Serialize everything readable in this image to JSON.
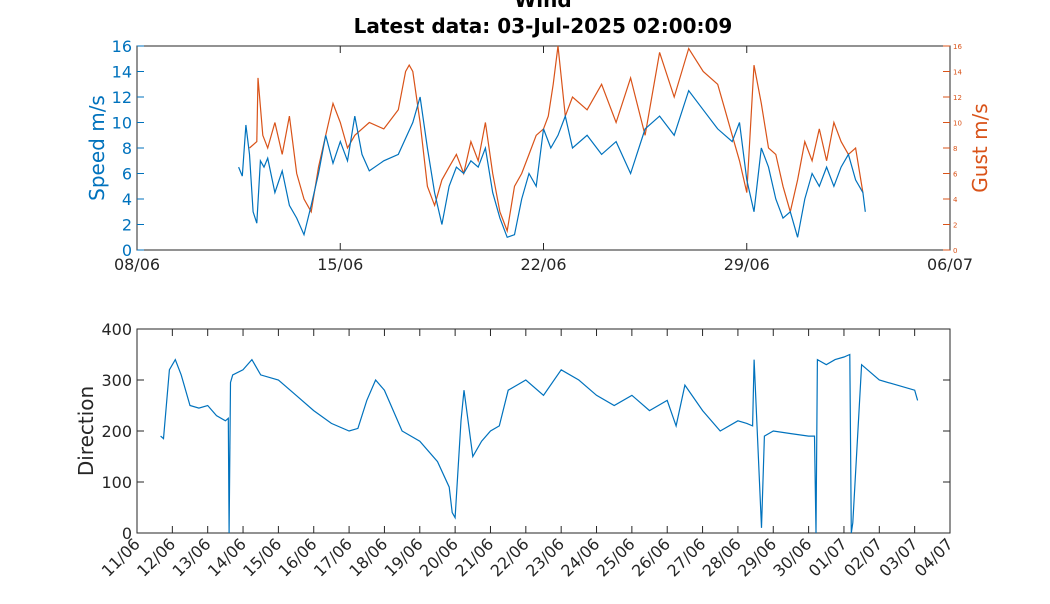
{
  "chart_data": [
    {
      "type": "line",
      "title": "Wind",
      "subtitle": "Latest data: 03-Jul-2025 02:00:09",
      "x_ticks": [
        "08/06",
        "15/06",
        "22/06",
        "29/06",
        "06/07"
      ],
      "xlim": [
        "2025-06-08",
        "2025-07-06"
      ],
      "ylabel": "Speed m/s",
      "y2label": "Gust m/s",
      "ylim": [
        0,
        16
      ],
      "y2lim": [
        0,
        16
      ],
      "y_ticks": [
        0,
        2,
        4,
        6,
        8,
        10,
        12,
        14,
        16
      ],
      "y2_ticks": [
        0,
        2,
        4,
        6,
        8,
        10,
        12,
        14,
        16
      ],
      "colors": {
        "speed": "#0072bd",
        "gust": "#d95319"
      },
      "series": [
        {
          "name": "Speed m/s",
          "axis": "left",
          "x": [
            "2025-06-11T12:00",
            "2025-06-11T15:00",
            "2025-06-11T18:00",
            "2025-06-11T21:00",
            "2025-06-12T00:00",
            "2025-06-12T03:00",
            "2025-06-12T06:00",
            "2025-06-12T09:00",
            "2025-06-12T12:00",
            "2025-06-12T18:00",
            "2025-06-13T00:00",
            "2025-06-13T06:00",
            "2025-06-13T12:00",
            "2025-06-13T18:00",
            "2025-06-14T00:00",
            "2025-06-14T06:00",
            "2025-06-14T12:00",
            "2025-06-14T18:00",
            "2025-06-15T00:00",
            "2025-06-15T06:00",
            "2025-06-15T12:00",
            "2025-06-15T18:00",
            "2025-06-16T00:00",
            "2025-06-16T12:00",
            "2025-06-17T00:00",
            "2025-06-17T12:00",
            "2025-06-17T18:00",
            "2025-06-18T00:00",
            "2025-06-18T06:00",
            "2025-06-18T12:00",
            "2025-06-18T18:00",
            "2025-06-19T00:00",
            "2025-06-19T06:00",
            "2025-06-19T12:00",
            "2025-06-19T18:00",
            "2025-06-20T00:00",
            "2025-06-20T06:00",
            "2025-06-20T12:00",
            "2025-06-20T18:00",
            "2025-06-21T00:00",
            "2025-06-21T06:00",
            "2025-06-21T12:00",
            "2025-06-21T18:00",
            "2025-06-22T00:00",
            "2025-06-22T06:00",
            "2025-06-22T12:00",
            "2025-06-22T18:00",
            "2025-06-23T00:00",
            "2025-06-23T12:00",
            "2025-06-24T00:00",
            "2025-06-24T12:00",
            "2025-06-25T00:00",
            "2025-06-25T12:00",
            "2025-06-26T00:00",
            "2025-06-26T12:00",
            "2025-06-27T00:00",
            "2025-06-27T12:00",
            "2025-06-28T00:00",
            "2025-06-28T12:00",
            "2025-06-28T18:00",
            "2025-06-29T00:00",
            "2025-06-29T06:00",
            "2025-06-29T12:00",
            "2025-06-29T18:00",
            "2025-06-30T00:00",
            "2025-06-30T06:00",
            "2025-06-30T12:00",
            "2025-06-30T18:00",
            "2025-07-01T00:00",
            "2025-07-01T06:00",
            "2025-07-01T12:00",
            "2025-07-01T18:00",
            "2025-07-02T00:00",
            "2025-07-02T06:00",
            "2025-07-02T12:00",
            "2025-07-02T18:00",
            "2025-07-03T00:00",
            "2025-07-03T02:00"
          ],
          "y": [
            6.5,
            5.8,
            9.8,
            7.5,
            3.0,
            2.1,
            7.0,
            6.5,
            7.2,
            4.5,
            6.2,
            3.5,
            2.5,
            1.2,
            3.5,
            6.0,
            9.0,
            6.8,
            8.5,
            7.0,
            10.5,
            7.5,
            6.2,
            7.0,
            7.5,
            10.0,
            12.0,
            8.0,
            4.5,
            2.0,
            5.0,
            6.5,
            6.0,
            7.0,
            6.5,
            8.0,
            4.5,
            2.5,
            1.0,
            1.2,
            4.0,
            6.0,
            5.0,
            9.5,
            8.0,
            9.0,
            10.5,
            8.0,
            9.0,
            7.5,
            8.5,
            6.0,
            9.5,
            10.5,
            9.0,
            12.5,
            11.0,
            9.5,
            8.5,
            10.0,
            5.5,
            3.0,
            8.0,
            6.5,
            4.0,
            2.5,
            3.0,
            1.0,
            4.0,
            6.0,
            5.0,
            6.5,
            5.0,
            6.5,
            7.5,
            5.5,
            4.5,
            3.0
          ]
        },
        {
          "name": "Gust m/s",
          "axis": "right",
          "x": [
            "2025-06-11T21:00",
            "2025-06-12T03:00",
            "2025-06-12T04:00",
            "2025-06-12T08:00",
            "2025-06-12T12:00",
            "2025-06-12T18:00",
            "2025-06-13T00:00",
            "2025-06-13T06:00",
            "2025-06-13T12:00",
            "2025-06-13T18:00",
            "2025-06-14T00:00",
            "2025-06-14T06:00",
            "2025-06-14T12:00",
            "2025-06-14T18:00",
            "2025-06-15T00:00",
            "2025-06-15T06:00",
            "2025-06-15T12:00",
            "2025-06-16T00:00",
            "2025-06-16T12:00",
            "2025-06-17T00:00",
            "2025-06-17T06:00",
            "2025-06-17T09:00",
            "2025-06-17T12:00",
            "2025-06-17T18:00",
            "2025-06-18T00:00",
            "2025-06-18T06:00",
            "2025-06-18T12:00",
            "2025-06-18T18:00",
            "2025-06-19T00:00",
            "2025-06-19T06:00",
            "2025-06-19T12:00",
            "2025-06-19T18:00",
            "2025-06-20T00:00",
            "2025-06-20T06:00",
            "2025-06-20T12:00",
            "2025-06-20T18:00",
            "2025-06-21T00:00",
            "2025-06-21T06:00",
            "2025-06-21T12:00",
            "2025-06-21T18:00",
            "2025-06-22T00:00",
            "2025-06-22T04:00",
            "2025-06-22T08:00",
            "2025-06-22T12:00",
            "2025-06-22T18:00",
            "2025-06-23T00:00",
            "2025-06-23T12:00",
            "2025-06-24T00:00",
            "2025-06-24T12:00",
            "2025-06-25T00:00",
            "2025-06-25T12:00",
            "2025-06-26T00:00",
            "2025-06-26T12:00",
            "2025-06-27T00:00",
            "2025-06-27T12:00",
            "2025-06-28T00:00",
            "2025-06-28T06:00",
            "2025-06-28T12:00",
            "2025-06-28T18:00",
            "2025-06-29T00:00",
            "2025-06-29T06:00",
            "2025-06-29T12:00",
            "2025-06-29T18:00",
            "2025-06-30T00:00",
            "2025-06-30T06:00",
            "2025-06-30T12:00",
            "2025-06-30T18:00",
            "2025-07-01T00:00",
            "2025-07-01T06:00",
            "2025-07-01T12:00",
            "2025-07-01T18:00",
            "2025-07-02T00:00",
            "2025-07-02T06:00",
            "2025-07-02T12:00",
            "2025-07-02T18:00",
            "2025-07-03T00:00"
          ],
          "y": [
            8.0,
            8.5,
            13.5,
            9.0,
            8.0,
            10.0,
            7.5,
            10.5,
            6.0,
            4.0,
            3.0,
            6.5,
            9.0,
            11.5,
            10.0,
            8.0,
            9.0,
            10.0,
            9.5,
            11.0,
            14.0,
            14.5,
            14.0,
            10.0,
            5.0,
            3.5,
            5.5,
            6.5,
            7.5,
            6.0,
            8.5,
            7.0,
            10.0,
            6.0,
            3.0,
            1.5,
            5.0,
            6.0,
            7.5,
            9.0,
            9.5,
            10.5,
            13.0,
            16.0,
            10.5,
            12.0,
            11.0,
            13.0,
            10.0,
            13.5,
            9.0,
            15.5,
            12.0,
            15.8,
            14.0,
            13.0,
            11.0,
            9.0,
            7.0,
            4.5,
            14.5,
            11.5,
            8.0,
            7.5,
            5.0,
            3.0,
            5.5,
            8.5,
            7.0,
            9.5,
            7.0,
            10.0,
            8.5,
            7.5,
            8.0,
            4.5
          ]
        }
      ]
    },
    {
      "type": "line",
      "ylabel": "Direction",
      "ylim": [
        0,
        400
      ],
      "y_ticks": [
        0,
        100,
        200,
        300,
        400
      ],
      "x_ticks": [
        "11/06",
        "12/06",
        "13/06",
        "14/06",
        "15/06",
        "16/06",
        "17/06",
        "18/06",
        "19/06",
        "20/06",
        "21/06",
        "22/06",
        "23/06",
        "24/06",
        "25/06",
        "26/06",
        "27/06",
        "28/06",
        "29/06",
        "30/06",
        "01/07",
        "02/07",
        "03/07",
        "04/07"
      ],
      "xlim": [
        "2025-06-11",
        "2025-07-04"
      ],
      "color": "#0072bd",
      "series": [
        {
          "x": [
            "2025-06-11T16:00",
            "2025-06-11T18:00",
            "2025-06-11T22:00",
            "2025-06-12T02:00",
            "2025-06-12T06:00",
            "2025-06-12T12:00",
            "2025-06-12T18:00",
            "2025-06-13T00:00",
            "2025-06-13T06:00",
            "2025-06-13T12:00",
            "2025-06-13T14:00",
            "2025-06-13T14:30",
            "2025-06-13T15:30",
            "2025-06-13T17:00",
            "2025-06-14T00:00",
            "2025-06-14T06:00",
            "2025-06-14T12:00",
            "2025-06-15T00:00",
            "2025-06-15T12:00",
            "2025-06-16T00:00",
            "2025-06-16T12:00",
            "2025-06-17T00:00",
            "2025-06-17T06:00",
            "2025-06-17T12:00",
            "2025-06-17T18:00",
            "2025-06-18T00:00",
            "2025-06-18T12:00",
            "2025-06-19T00:00",
            "2025-06-19T12:00",
            "2025-06-19T20:00",
            "2025-06-19T22:00",
            "2025-06-20T00:00",
            "2025-06-20T04:00",
            "2025-06-20T06:00",
            "2025-06-20T12:00",
            "2025-06-20T18:00",
            "2025-06-21T00:00",
            "2025-06-21T06:00",
            "2025-06-21T12:00",
            "2025-06-21T18:00",
            "2025-06-22T00:00",
            "2025-06-22T12:00",
            "2025-06-23T00:00",
            "2025-06-23T12:00",
            "2025-06-24T00:00",
            "2025-06-24T12:00",
            "2025-06-25T00:00",
            "2025-06-25T12:00",
            "2025-06-26T00:00",
            "2025-06-26T06:00",
            "2025-06-26T12:00",
            "2025-06-27T00:00",
            "2025-06-27T12:00",
            "2025-06-28T00:00",
            "2025-06-28T06:00",
            "2025-06-28T10:00",
            "2025-06-28T11:00",
            "2025-06-28T16:00",
            "2025-06-28T18:00",
            "2025-06-29T00:00",
            "2025-06-29T12:00",
            "2025-06-30T00:00",
            "2025-06-30T04:00",
            "2025-06-30T05:00",
            "2025-06-30T06:00",
            "2025-06-30T12:00",
            "2025-06-30T18:00",
            "2025-07-01T00:00",
            "2025-07-01T04:00",
            "2025-07-01T05:00",
            "2025-07-01T06:00",
            "2025-07-01T12:00",
            "2025-07-02T00:00",
            "2025-07-02T12:00",
            "2025-07-03T00:00",
            "2025-07-03T02:00"
          ],
          "y": [
            190,
            185,
            320,
            340,
            310,
            250,
            245,
            250,
            230,
            220,
            225,
            0,
            295,
            310,
            320,
            340,
            310,
            300,
            270,
            240,
            215,
            200,
            205,
            260,
            300,
            280,
            200,
            180,
            140,
            90,
            40,
            30,
            220,
            280,
            150,
            180,
            200,
            210,
            280,
            290,
            300,
            270,
            320,
            300,
            270,
            250,
            270,
            240,
            260,
            210,
            290,
            240,
            200,
            220,
            215,
            210,
            340,
            10,
            190,
            200,
            195,
            190,
            190,
            0,
            340,
            330,
            340,
            345,
            350,
            0,
            20,
            330,
            300,
            290,
            280,
            260
          ]
        }
      ]
    }
  ]
}
